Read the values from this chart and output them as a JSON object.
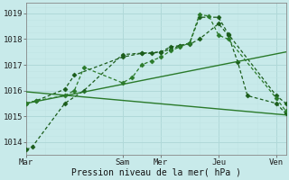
{
  "bg_color": "#c8eaea",
  "grid_color_major": "#b0d8d8",
  "grid_color_minor": "#c0e4e4",
  "line_color1": "#1a5c1a",
  "line_color2": "#2a7a2a",
  "xlabel": "Pression niveau de la mer( hPa )",
  "ylim": [
    1013.5,
    1019.4
  ],
  "yticks": [
    1014,
    1015,
    1016,
    1017,
    1018,
    1019
  ],
  "xtick_labels": [
    "Mar",
    "Sam",
    "Mer",
    "Jeu",
    "Ven"
  ],
  "xtick_positions": [
    0,
    5,
    7,
    10,
    13
  ],
  "xlim": [
    0,
    13.5
  ],
  "series": [
    {
      "x": [
        0,
        0.3,
        2,
        3,
        5,
        6,
        7,
        7.5,
        8,
        8.5,
        9,
        10,
        10.5,
        11,
        11.5,
        13,
        13.5
      ],
      "y": [
        1013.7,
        1013.8,
        1015.5,
        1016.0,
        1017.4,
        1017.45,
        1017.5,
        1017.7,
        1017.75,
        1017.8,
        1018.0,
        1018.6,
        1018.15,
        1017.1,
        1015.8,
        1015.5,
        1015.1
      ],
      "style": "dotted",
      "marker": "D",
      "markersize": 2.5,
      "linewidth": 0.9,
      "color": "#1a5c1a"
    },
    {
      "x": [
        0,
        0.5,
        2,
        2.5,
        5,
        6,
        6.5,
        7,
        7.5,
        8,
        8.5,
        9,
        10,
        10.5,
        13,
        13.5
      ],
      "y": [
        1015.5,
        1015.6,
        1016.05,
        1016.6,
        1017.3,
        1017.45,
        1017.45,
        1017.5,
        1017.6,
        1017.75,
        1017.85,
        1018.85,
        1018.85,
        1018.2,
        1015.8,
        1015.5
      ],
      "style": "dotted",
      "marker": "D",
      "markersize": 2.5,
      "linewidth": 0.9,
      "color": "#1a5c1a"
    },
    {
      "x": [
        0,
        0.5,
        2,
        2.5,
        3,
        5,
        5.5,
        6,
        6.5,
        7,
        7.5,
        8,
        8.5,
        9,
        9.5,
        10,
        10.5,
        13,
        13.5
      ],
      "y": [
        1015.5,
        1015.6,
        1015.8,
        1016.0,
        1016.9,
        1016.3,
        1016.5,
        1017.0,
        1017.15,
        1017.3,
        1017.55,
        1017.7,
        1017.85,
        1018.95,
        1018.9,
        1018.15,
        1018.0,
        1015.7,
        1015.2
      ],
      "style": "dotted",
      "marker": "D",
      "markersize": 2.5,
      "linewidth": 0.9,
      "color": "#2a7a2a"
    },
    {
      "x": [
        0,
        13.5
      ],
      "y": [
        1015.5,
        1017.5
      ],
      "style": "solid",
      "marker": null,
      "markersize": 0,
      "linewidth": 1.0,
      "color": "#2a7a2a"
    },
    {
      "x": [
        0,
        13.5
      ],
      "y": [
        1015.95,
        1015.05
      ],
      "style": "solid",
      "marker": null,
      "markersize": 0,
      "linewidth": 1.0,
      "color": "#2a7a2a"
    }
  ]
}
